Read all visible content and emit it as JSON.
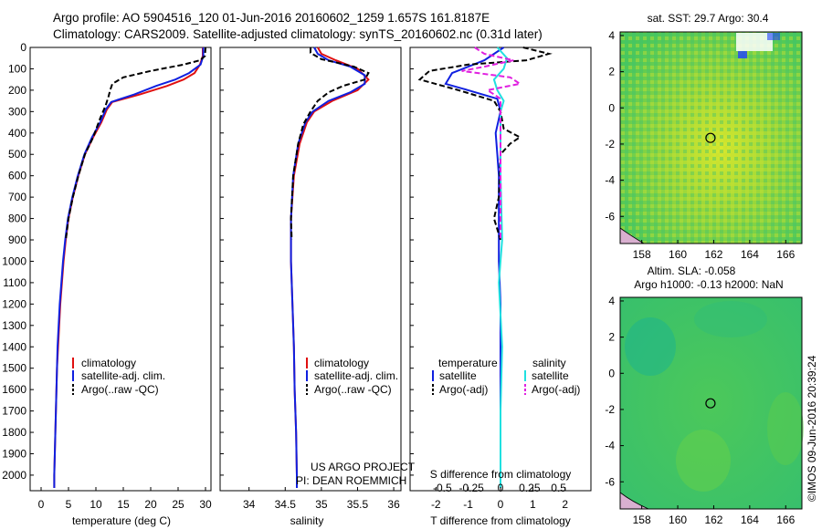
{
  "header": {
    "line1": "Argo profile: AO 5904516_120 01-Jun-2016 20160602_1259 1.657S 161.8187E",
    "line2": "Climatology: CARS2009. Satellite-adjusted climatology: synTS_20160602.nc (0.31d later)"
  },
  "colors": {
    "climatology": "#e01010",
    "satellite": "#1020e0",
    "argo": "#000000",
    "sal_satellite": "#20e0e0",
    "sal_argo": "#e020e0"
  },
  "chart_data": [
    {
      "type": "line",
      "id": "temperature",
      "xlabel": "temperature (deg C)",
      "xlim": [
        -2,
        31
      ],
      "xticks": [
        "0",
        "5",
        "10",
        "15",
        "20",
        "25",
        "30"
      ],
      "xtick_values": [
        0,
        5,
        10,
        15,
        20,
        25,
        30
      ],
      "ylim": [
        0,
        2060
      ],
      "yticks": [
        "0",
        "100",
        "200",
        "300",
        "400",
        "500",
        "600",
        "700",
        "800",
        "900",
        "1000",
        "1100",
        "1200",
        "1300",
        "1400",
        "1500",
        "1600",
        "1700",
        "1800",
        "1900",
        "2000"
      ],
      "ytick_values": [
        0,
        100,
        200,
        300,
        400,
        500,
        600,
        700,
        800,
        900,
        1000,
        1100,
        1200,
        1300,
        1400,
        1500,
        1600,
        1700,
        1800,
        1900,
        2000
      ],
      "legend": [
        "climatology",
        "satellite-adj. clim.",
        "Argo(..raw -QC)"
      ],
      "series": [
        {
          "name": "climatology",
          "style": "solid",
          "color_key": "climatology",
          "points": [
            [
              29.5,
              0
            ],
            [
              29.5,
              40
            ],
            [
              29.0,
              80
            ],
            [
              28.0,
              120
            ],
            [
              26.0,
              150
            ],
            [
              23.0,
              180
            ],
            [
              18.0,
              220
            ],
            [
              13.0,
              255
            ],
            [
              12.0,
              290
            ],
            [
              11.0,
              350
            ],
            [
              9.5,
              420
            ],
            [
              8.0,
              500
            ],
            [
              6.8,
              600
            ],
            [
              5.8,
              700
            ],
            [
              5.0,
              800
            ],
            [
              4.5,
              900
            ],
            [
              4.1,
              1000
            ],
            [
              3.8,
              1100
            ],
            [
              3.5,
              1200
            ],
            [
              3.3,
              1300
            ],
            [
              3.1,
              1400
            ],
            [
              2.9,
              1500
            ],
            [
              2.8,
              1600
            ],
            [
              2.7,
              1700
            ],
            [
              2.6,
              1800
            ],
            [
              2.5,
              1900
            ],
            [
              2.4,
              2000
            ],
            [
              2.4,
              2060
            ]
          ]
        },
        {
          "name": "satellite-adj. clim.",
          "style": "solid",
          "color_key": "satellite",
          "points": [
            [
              29.6,
              0
            ],
            [
              29.6,
              40
            ],
            [
              29.1,
              80
            ],
            [
              27.0,
              120
            ],
            [
              24.5,
              150
            ],
            [
              21.0,
              180
            ],
            [
              17.0,
              220
            ],
            [
              12.8,
              255
            ],
            [
              11.8,
              290
            ],
            [
              10.8,
              350
            ],
            [
              9.3,
              420
            ],
            [
              7.9,
              500
            ],
            [
              6.7,
              600
            ],
            [
              5.7,
              700
            ],
            [
              4.9,
              800
            ],
            [
              4.4,
              900
            ],
            [
              4.0,
              1000
            ],
            [
              3.7,
              1100
            ],
            [
              3.4,
              1200
            ],
            [
              3.2,
              1300
            ],
            [
              3.0,
              1400
            ],
            [
              2.9,
              1500
            ],
            [
              2.8,
              1600
            ],
            [
              2.7,
              1700
            ],
            [
              2.6,
              1800
            ],
            [
              2.5,
              1900
            ],
            [
              2.4,
              2000
            ],
            [
              2.4,
              2060
            ]
          ]
        },
        {
          "name": "Argo(..raw -QC)",
          "style": "dashed",
          "color_key": "argo",
          "points": [
            [
              30.0,
              0
            ],
            [
              29.9,
              40
            ],
            [
              29.0,
              60
            ],
            [
              26.0,
              80
            ],
            [
              20.0,
              110
            ],
            [
              15.0,
              140
            ],
            [
              13.0,
              170
            ],
            [
              12.6,
              200
            ],
            [
              12.3,
              230
            ],
            [
              11.8,
              270
            ],
            [
              10.8,
              330
            ],
            [
              9.5,
              420
            ],
            [
              8.0,
              500
            ],
            [
              6.8,
              600
            ],
            [
              5.8,
              700
            ],
            [
              5.0,
              800
            ],
            [
              4.5,
              900
            ]
          ]
        }
      ],
      "annotations": []
    },
    {
      "type": "line",
      "id": "salinity",
      "xlabel": "salinity",
      "xlim": [
        33.6,
        36.1
      ],
      "xticks": [
        "34",
        "34.5",
        "35",
        "35.5",
        "36"
      ],
      "xtick_values": [
        34,
        34.5,
        35,
        35.5,
        36
      ],
      "ylim": [
        0,
        2060
      ],
      "legend": [
        "climatology",
        "satellite-adj. clim.",
        "Argo(..raw -QC)"
      ],
      "series": [
        {
          "name": "climatology",
          "style": "solid",
          "color_key": "climatology",
          "points": [
            [
              34.95,
              0
            ],
            [
              35.0,
              30
            ],
            [
              35.2,
              60
            ],
            [
              35.5,
              100
            ],
            [
              35.65,
              150
            ],
            [
              35.5,
              200
            ],
            [
              35.15,
              250
            ],
            [
              34.9,
              300
            ],
            [
              34.8,
              350
            ],
            [
              34.7,
              450
            ],
            [
              34.62,
              600
            ],
            [
              34.58,
              800
            ],
            [
              34.58,
              1000
            ],
            [
              34.6,
              1200
            ],
            [
              34.62,
              1400
            ],
            [
              34.63,
              1600
            ],
            [
              34.65,
              1800
            ],
            [
              34.66,
              2000
            ],
            [
              34.66,
              2060
            ]
          ]
        },
        {
          "name": "satellite-adj. clim.",
          "style": "solid",
          "color_key": "satellite",
          "points": [
            [
              34.9,
              0
            ],
            [
              34.95,
              30
            ],
            [
              35.1,
              60
            ],
            [
              35.4,
              90
            ],
            [
              35.6,
              130
            ],
            [
              35.6,
              170
            ],
            [
              35.4,
              210
            ],
            [
              35.1,
              250
            ],
            [
              34.88,
              300
            ],
            [
              34.78,
              350
            ],
            [
              34.68,
              450
            ],
            [
              34.61,
              600
            ],
            [
              34.58,
              800
            ],
            [
              34.58,
              1000
            ],
            [
              34.6,
              1200
            ],
            [
              34.62,
              1400
            ],
            [
              34.63,
              1600
            ],
            [
              34.65,
              1800
            ],
            [
              34.66,
              2000
            ],
            [
              34.66,
              2060
            ]
          ]
        },
        {
          "name": "Argo(..raw -QC)",
          "style": "dashed",
          "color_key": "argo",
          "points": [
            [
              34.85,
              0
            ],
            [
              34.85,
              25
            ],
            [
              35.0,
              55
            ],
            [
              35.2,
              70
            ],
            [
              35.45,
              90
            ],
            [
              35.65,
              120
            ],
            [
              35.6,
              150
            ],
            [
              35.3,
              180
            ],
            [
              35.1,
              210
            ],
            [
              34.95,
              250
            ],
            [
              34.85,
              300
            ],
            [
              34.75,
              360
            ],
            [
              34.68,
              450
            ],
            [
              34.61,
              600
            ],
            [
              34.58,
              800
            ],
            [
              34.59,
              900
            ]
          ]
        }
      ],
      "annotations": [
        "US ARGO PROJECT",
        "PI: DEAN ROEMMICH"
      ]
    },
    {
      "type": "line",
      "id": "difference",
      "xlabel": "T difference from climatology",
      "xlabel_top": "S difference from climatology",
      "xlim": [
        -2.8,
        2.8
      ],
      "xticks": [
        "-2",
        "-1",
        "0",
        "1",
        "2"
      ],
      "xtick_values": [
        -2,
        -1,
        0,
        1,
        2
      ],
      "xticks_top": [
        "-0.5",
        "-0.25",
        "0",
        "0.25",
        "0.5"
      ],
      "xtick_top_values": [
        -1.8,
        -0.9,
        0,
        0.9,
        1.8
      ],
      "ylim": [
        0,
        2060
      ],
      "legend_titles": [
        "temperature",
        "salinity"
      ],
      "legend": [
        "satellite",
        "Argo(-adj)",
        "satellite",
        "Argo(-adj)"
      ],
      "series": [
        {
          "name": "T satellite",
          "style": "solid",
          "color_key": "satellite",
          "points": [
            [
              0.1,
              0
            ],
            [
              -0.5,
              60
            ],
            [
              -1.5,
              120
            ],
            [
              -1.7,
              170
            ],
            [
              -1.0,
              200
            ],
            [
              -0.1,
              240
            ],
            [
              0,
              300
            ],
            [
              -0.15,
              400
            ],
            [
              -0.1,
              500
            ],
            [
              -0.05,
              600
            ],
            [
              -0.05,
              800
            ],
            [
              -0.05,
              1000
            ],
            [
              0,
              1200
            ],
            [
              0,
              1400
            ],
            [
              0,
              1600
            ],
            [
              0,
              1800
            ],
            [
              0,
              2000
            ],
            [
              0,
              2060
            ]
          ]
        },
        {
          "name": "T Argo(-adj)",
          "style": "dashed",
          "color_key": "argo",
          "points": [
            [
              0.7,
              0
            ],
            [
              1.5,
              30
            ],
            [
              0.8,
              60
            ],
            [
              -1.0,
              80
            ],
            [
              -2.2,
              110
            ],
            [
              -2.5,
              150
            ],
            [
              -1.3,
              200
            ],
            [
              -0.2,
              250
            ],
            [
              0,
              300
            ],
            [
              0.1,
              380
            ],
            [
              0.6,
              420
            ],
            [
              0.3,
              450
            ],
            [
              0,
              500
            ],
            [
              -0.05,
              700
            ],
            [
              -0.2,
              800
            ],
            [
              -0.1,
              850
            ],
            [
              0,
              900
            ]
          ]
        },
        {
          "name": "S satellite",
          "style": "solid",
          "color_key": "sal_satellite",
          "points": [
            [
              -0.1,
              0
            ],
            [
              0.2,
              50
            ],
            [
              0.1,
              100
            ],
            [
              -0.2,
              150
            ],
            [
              -0.1,
              200
            ],
            [
              0.1,
              250
            ],
            [
              0,
              300
            ],
            [
              0,
              600
            ],
            [
              0.05,
              900
            ],
            [
              -0.05,
              1100
            ],
            [
              0.05,
              1400
            ],
            [
              0,
              1700
            ],
            [
              0,
              2000
            ],
            [
              0,
              2060
            ]
          ]
        },
        {
          "name": "S Argo(-adj)",
          "style": "dashed",
          "color_key": "sal_argo",
          "points": [
            [
              -0.8,
              0
            ],
            [
              -0.5,
              30
            ],
            [
              0.4,
              60
            ],
            [
              -0.5,
              90
            ],
            [
              -1.2,
              110
            ],
            [
              0.3,
              140
            ],
            [
              0.6,
              170
            ],
            [
              -0.4,
              200
            ],
            [
              0,
              240
            ],
            [
              0,
              900
            ]
          ]
        }
      ],
      "annotations": []
    },
    {
      "type": "heatmap",
      "id": "sst_map",
      "title": "sat. SST: 29.7 Argo: 30.4",
      "xticks": [
        "158",
        "160",
        "162",
        "164",
        "166"
      ],
      "xtick_values": [
        158,
        160,
        162,
        164,
        166
      ],
      "yticks": [
        "4",
        "2",
        "0",
        "-2",
        "-4",
        "-6"
      ],
      "ytick_values": [
        4,
        2,
        0,
        -2,
        -4,
        -6
      ],
      "xlim": [
        156.8,
        166.9
      ],
      "ylim": [
        -7.5,
        4.2
      ],
      "marker": [
        161.82,
        -1.66
      ]
    },
    {
      "type": "heatmap",
      "id": "sla_map",
      "title": "Altim. SLA: -0.058",
      "title2": "Argo h1000: -0.13 h2000: NaN",
      "xticks": [
        "158",
        "160",
        "162",
        "164",
        "166"
      ],
      "xtick_values": [
        158,
        160,
        162,
        164,
        166
      ],
      "yticks": [
        "4",
        "2",
        "0",
        "-2",
        "-4",
        "-6"
      ],
      "ytick_values": [
        4,
        2,
        0,
        -2,
        -4,
        -6
      ],
      "xlim": [
        156.8,
        166.9
      ],
      "ylim": [
        -7.5,
        4.2
      ],
      "marker": [
        161.82,
        -1.66
      ]
    }
  ],
  "footer": {
    "credit": "©IMOS 09-Jun-2016 20:39:24"
  }
}
